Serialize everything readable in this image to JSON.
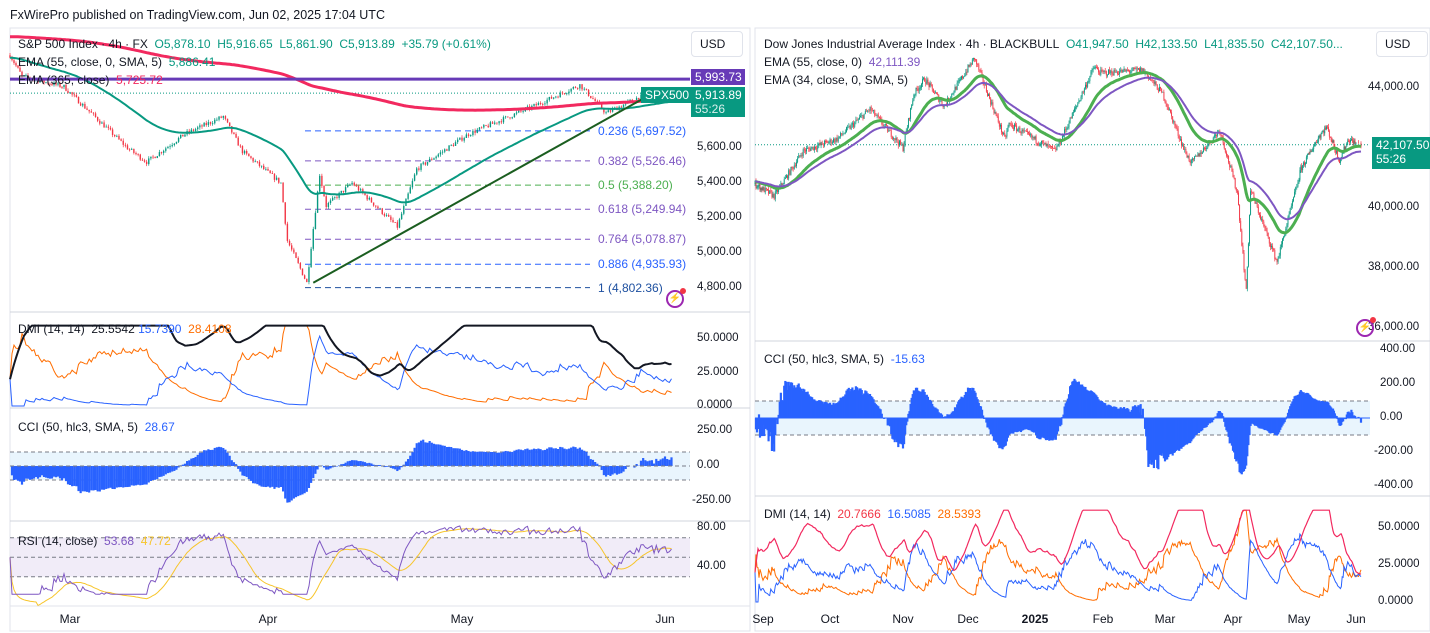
{
  "publisher": "FxWirePro published on TradingView.com, Jun 02, 2025 17:04 UTC",
  "left": {
    "title": "S&P 500 Index · 4h · FX",
    "ohlc": {
      "o": "O5,878.10",
      "h": "H5,916.65",
      "l": "L5,861.90",
      "c": "C5,913.89",
      "chg": "+35.79 (+0.61%)"
    },
    "ema1": {
      "label": "EMA (55, close, 0, SMA, 5)",
      "value": "5,886.41",
      "color": "#089981"
    },
    "ema2": {
      "label": "EMA (365, close)",
      "value": "5,725.72",
      "color": "#f2295f"
    },
    "currency": "USD",
    "hline": {
      "value": 5993.73,
      "label": "5,993.73",
      "color": "#673ab7"
    },
    "last": {
      "label": "5,913.89",
      "timer": "55:26",
      "symbol": "SPX500"
    },
    "price_axis": [
      "5,600.00",
      "5,400.00",
      "5,200.00",
      "5,000.00",
      "4,800.00"
    ],
    "fib": [
      {
        "label": "0.236 (5,697.52)",
        "value": 5697.52,
        "color": "#2962ff"
      },
      {
        "label": "0.382 (5,526.46)",
        "value": 5526.46,
        "color": "#7e57c2"
      },
      {
        "label": "0.5 (5,388.20)",
        "value": 5388.2,
        "color": "#4caf50"
      },
      {
        "label": "0.618 (5,249.94)",
        "value": 5249.94,
        "color": "#7e57c2"
      },
      {
        "label": "0.764 (5,078.87)",
        "value": 5078.87,
        "color": "#7e57c2"
      },
      {
        "label": "0.886 (4,935.93)",
        "value": 4935.93,
        "color": "#2962ff"
      },
      {
        "label": "1 (4,802.36)",
        "value": 4802.36,
        "color": "#1e50a0"
      }
    ],
    "dmi": {
      "label": "DMI (14, 14)",
      "v1": "25.5542",
      "v2": "15.7390",
      "v3": "28.4108",
      "axis": [
        "50.0000",
        "25.0000",
        "0.0000"
      ]
    },
    "cci": {
      "label": "CCI (50, hlc3, SMA, 5)",
      "value": "28.67",
      "axis": [
        "250.00",
        "0.00",
        "-250.00"
      ]
    },
    "rsi": {
      "label": "RSI (14, close)",
      "value": "53.68",
      "ma": "47.72",
      "axis": [
        "80.00",
        "40.00"
      ]
    },
    "dates": [
      "Mar",
      "Apr",
      "May",
      "Jun"
    ]
  },
  "right": {
    "title": "Dow Jones Industrial Average Index · 4h · BLACKBULL",
    "ohlc": {
      "o": "O41,947.50",
      "h": "H42,133.50",
      "l": "L41,835.50",
      "c": "C42,107.50..."
    },
    "ema1": {
      "label": "EMA (55, close, 0)",
      "value": "42,111.39",
      "color": "#7e57c2"
    },
    "ema2": {
      "label": "EMA (34, close, 0, SMA, 5)",
      "color": "#4caf50"
    },
    "currency": "USD",
    "last": {
      "label": "42,107.50",
      "timer": "55:26"
    },
    "price_axis": [
      "44,000.00",
      "40,000.00",
      "38,000.00",
      "36,000.00"
    ],
    "cci": {
      "label": "CCI (50, hlc3, SMA, 5)",
      "value": "-15.63",
      "axis": [
        "400.00",
        "200.00",
        "0.00",
        "-200.00",
        "-400.00"
      ]
    },
    "dmi": {
      "label": "DMI (14, 14)",
      "v1": "20.7666",
      "v2": "16.5085",
      "v3": "28.5393",
      "axis": [
        "50.0000",
        "25.0000",
        "0.0000"
      ]
    },
    "dates": [
      "Sep",
      "Oct",
      "Nov",
      "Dec",
      "2025",
      "Feb",
      "Mar",
      "Apr",
      "May",
      "Jun"
    ]
  },
  "colors": {
    "up": "#089981",
    "down": "#f23645",
    "cci": "#2962ff",
    "rsi": "#7e57c2",
    "rsi_ma": "#f7c52b",
    "trend": "#1b5e20"
  },
  "chart_data": [
    {
      "type": "candlestick",
      "series": "S&P 500 Index 4h",
      "x_range": [
        "2025-02-19",
        "2025-06-02"
      ],
      "key_closes": [
        [
          "2025-02-19",
          6130
        ],
        [
          "2025-02-21",
          6010
        ],
        [
          "2025-02-28",
          5950
        ],
        [
          "2025-03-10",
          5600
        ],
        [
          "2025-03-13",
          5520
        ],
        [
          "2025-03-19",
          5680
        ],
        [
          "2025-03-25",
          5780
        ],
        [
          "2025-03-28",
          5580
        ],
        [
          "2025-04-03",
          5400
        ],
        [
          "2025-04-04",
          5070
        ],
        [
          "2025-04-07",
          4830
        ],
        [
          "2025-04-09",
          5450
        ],
        [
          "2025-04-10",
          5270
        ],
        [
          "2025-04-14",
          5400
        ],
        [
          "2025-04-21",
          5150
        ],
        [
          "2025-04-24",
          5480
        ],
        [
          "2025-05-02",
          5680
        ],
        [
          "2025-05-12",
          5840
        ],
        [
          "2025-05-19",
          5960
        ],
        [
          "2025-05-23",
          5800
        ],
        [
          "2025-05-28",
          5890
        ],
        [
          "2025-06-02",
          5913.89
        ]
      ],
      "trendline": [
        [
          "2025-04-08",
          4830
        ],
        [
          "2025-05-30",
          5910
        ]
      ]
    },
    {
      "type": "candlestick",
      "series": "Dow Jones Industrial Average Index 4h",
      "x_range": [
        "2024-08-28",
        "2025-06-02"
      ],
      "key_closes": [
        [
          "2024-08-28",
          40800
        ],
        [
          "2024-09-06",
          40400
        ],
        [
          "2024-09-19",
          41900
        ],
        [
          "2024-10-04",
          42300
        ],
        [
          "2024-10-18",
          43300
        ],
        [
          "2024-11-01",
          42000
        ],
        [
          "2024-11-06",
          43800
        ],
        [
          "2024-11-11",
          44300
        ],
        [
          "2024-11-20",
          43400
        ],
        [
          "2024-12-04",
          45000
        ],
        [
          "2024-12-18",
          42300
        ],
        [
          "2024-12-20",
          42800
        ],
        [
          "2025-01-10",
          41900
        ],
        [
          "2025-01-13",
          42300
        ],
        [
          "2025-01-28",
          44700
        ],
        [
          "2025-01-31",
          44500
        ],
        [
          "2025-02-19",
          44600
        ],
        [
          "2025-02-28",
          43800
        ],
        [
          "2025-03-10",
          41900
        ],
        [
          "2025-03-13",
          41500
        ],
        [
          "2025-03-19",
          42000
        ],
        [
          "2025-03-26",
          42600
        ],
        [
          "2025-04-03",
          40500
        ],
        [
          "2025-04-07",
          37200
        ],
        [
          "2025-04-09",
          40600
        ],
        [
          "2025-04-21",
          38200
        ],
        [
          "2025-05-02",
          41300
        ],
        [
          "2025-05-12",
          42400
        ],
        [
          "2025-05-16",
          42700
        ],
        [
          "2025-05-23",
          41600
        ],
        [
          "2025-05-28",
          42300
        ],
        [
          "2025-06-02",
          42107.5
        ]
      ]
    }
  ]
}
